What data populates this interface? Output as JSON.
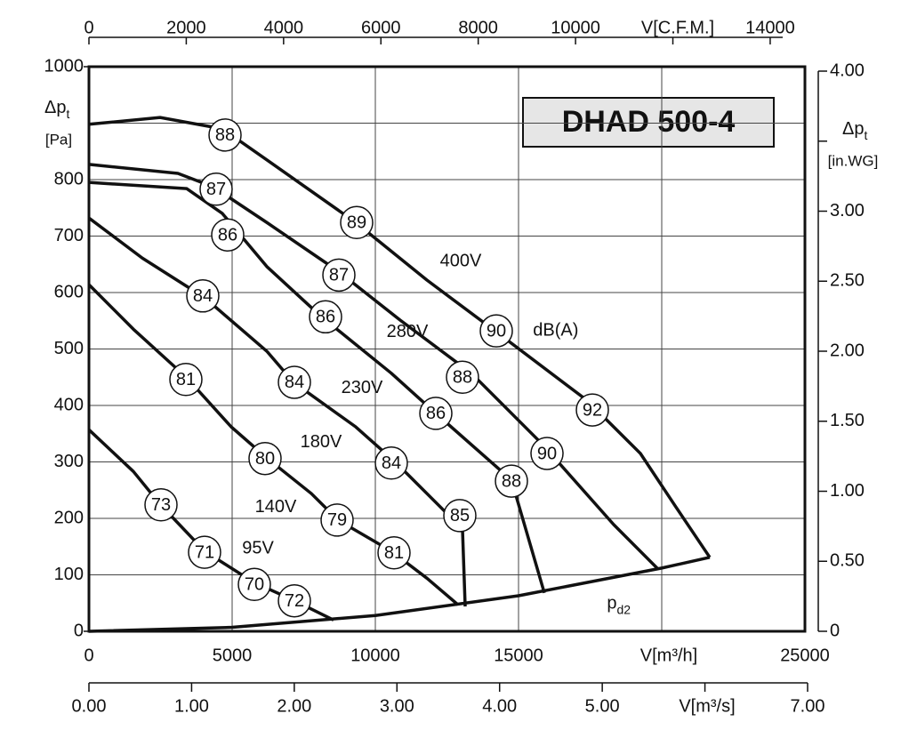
{
  "chart_data": {
    "type": "line",
    "title": "DHAD 500-4",
    "x_label": "V[m³/h]",
    "y_label": "Δp",
    "y_label_sub": "t",
    "y_unit": "[Pa]",
    "y2_label": "Δp",
    "y2_label_sub": "t",
    "y2_unit": "[in.WG]",
    "x2_label": "V[C.F.M.]",
    "x3_label": "V[m³/s]",
    "xlim": [
      0,
      25000
    ],
    "xticks": [
      0,
      5000,
      10000,
      15000,
      {
        "value": 20000,
        "label": null
      },
      25000
    ],
    "ylim": [
      0,
      1000
    ],
    "yticks": [
      0,
      100,
      200,
      300,
      400,
      500,
      600,
      700,
      800,
      {
        "value": 900,
        "label": null
      },
      1000
    ],
    "y2lim": [
      0,
      4
    ],
    "y2ticks": [
      0,
      {
        "value": 0.5,
        "label": "0.50"
      },
      {
        "value": 1,
        "label": "1.00"
      },
      {
        "value": 1.5,
        "label": "1.50"
      },
      {
        "value": 2,
        "label": "2.00"
      },
      {
        "value": 2.5,
        "label": "2.50"
      },
      {
        "value": 3,
        "label": "3.00"
      },
      {
        "value": 3.5,
        "label": null
      },
      {
        "value": 4,
        "label": "4.00"
      }
    ],
    "x2lim": [
      0,
      14714
    ],
    "x2ticks": [
      0,
      2000,
      4000,
      6000,
      8000,
      10000,
      {
        "value": 12000,
        "label": null
      },
      14000
    ],
    "x3lim": [
      0,
      7
    ],
    "x3ticks": [
      {
        "value": 0,
        "label": "0.00"
      },
      {
        "value": 1,
        "label": "1.00"
      },
      {
        "value": 2,
        "label": "2.00"
      },
      {
        "value": 3,
        "label": "3.00"
      },
      {
        "value": 4,
        "label": "4.00"
      },
      {
        "value": 5,
        "label": "5.00"
      },
      {
        "value": 6,
        "label": null
      },
      {
        "value": 7,
        "label": "7.00"
      }
    ],
    "grid": true,
    "color": "#111111",
    "series": [
      {
        "name": "400V",
        "label_at": [
          12981,
          654
        ],
        "x": [
          0,
          2484,
          4658,
          6211,
          9317,
          11801,
          14286,
          17391,
          19255,
          20497,
          21677
        ],
        "values": [
          898,
          910,
          890,
          835,
          724,
          622,
          528,
          409,
          315,
          220,
          131
        ]
      },
      {
        "name": "280V",
        "label_at": [
          11118,
          529
        ],
        "x": [
          0,
          3106,
          4348,
          6211,
          8696,
          10870,
          13354,
          15839,
          18323,
          19876
        ],
        "values": [
          827,
          811,
          787,
          724,
          638,
          551,
          457,
          331,
          189,
          110
        ]
      },
      {
        "name": "230V",
        "label_at": [
          9534,
          430
        ],
        "x": [
          0,
          3416,
          4658,
          6211,
          8075,
          10559,
          12112,
          14752,
          15901
        ],
        "values": [
          795,
          784,
          740,
          646,
          559,
          457,
          386,
          268,
          68
        ]
      },
      {
        "name": "180V",
        "label_at": [
          8106,
          334
        ],
        "x": [
          0,
          1863,
          4037,
          6211,
          7143,
          9317,
          10714,
          11801,
          13043,
          13137
        ],
        "values": [
          732,
          661,
          591,
          496,
          441,
          362,
          299,
          244,
          181,
          44
        ]
      },
      {
        "name": "140V",
        "label_at": [
          6522,
          219
        ],
        "x": [
          0,
          1553,
          3416,
          4969,
          6211,
          7764,
          8696,
          10559,
          11801,
          12888
        ],
        "values": [
          614,
          535,
          449,
          362,
          307,
          244,
          197,
          142,
          94,
          47
        ]
      },
      {
        "name": "95V",
        "label_at": [
          5901,
          146
        ],
        "x": [
          0,
          1553,
          2484,
          4037,
          5745,
          7143,
          8540
        ],
        "values": [
          357,
          283,
          225,
          142,
          87,
          55,
          20
        ]
      },
      {
        "name": "p",
        "name_sub": "d2",
        "label_at": [
          18500,
          48
        ],
        "x": [
          0,
          5000,
          10000,
          15000,
          20000,
          21677
        ],
        "values": [
          0,
          7,
          28,
          63,
          112,
          131
        ]
      }
    ],
    "annotations": [
      {
        "text": "88",
        "x": 4752,
        "y": 879
      },
      {
        "text": "87",
        "x": 4441,
        "y": 783
      },
      {
        "text": "86",
        "x": 4845,
        "y": 702
      },
      {
        "text": "84",
        "x": 3975,
        "y": 594
      },
      {
        "text": "81",
        "x": 3385,
        "y": 446
      },
      {
        "text": "73",
        "x": 2516,
        "y": 224
      },
      {
        "text": "71",
        "x": 4037,
        "y": 140
      },
      {
        "text": "70",
        "x": 5776,
        "y": 83
      },
      {
        "text": "72",
        "x": 7174,
        "y": 54
      },
      {
        "text": "89",
        "x": 9348,
        "y": 724
      },
      {
        "text": "87",
        "x": 8727,
        "y": 631
      },
      {
        "text": "86",
        "x": 8261,
        "y": 557
      },
      {
        "text": "84",
        "x": 7174,
        "y": 441
      },
      {
        "text": "80",
        "x": 6149,
        "y": 306
      },
      {
        "text": "79",
        "x": 8665,
        "y": 197
      },
      {
        "text": "81",
        "x": 10652,
        "y": 139
      },
      {
        "text": "90",
        "x": 14224,
        "y": 532
      },
      {
        "text": "88",
        "x": 13043,
        "y": 450
      },
      {
        "text": "86",
        "x": 12112,
        "y": 386
      },
      {
        "text": "84",
        "x": 10559,
        "y": 298
      },
      {
        "text": "85",
        "x": 12950,
        "y": 205
      },
      {
        "text": "92",
        "x": 17578,
        "y": 392
      },
      {
        "text": "90",
        "x": 15994,
        "y": 315
      },
      {
        "text": "88",
        "x": 14752,
        "y": 266
      }
    ],
    "notes": [
      {
        "text": "dB(A)",
        "x": 16300,
        "y": 532
      }
    ]
  }
}
